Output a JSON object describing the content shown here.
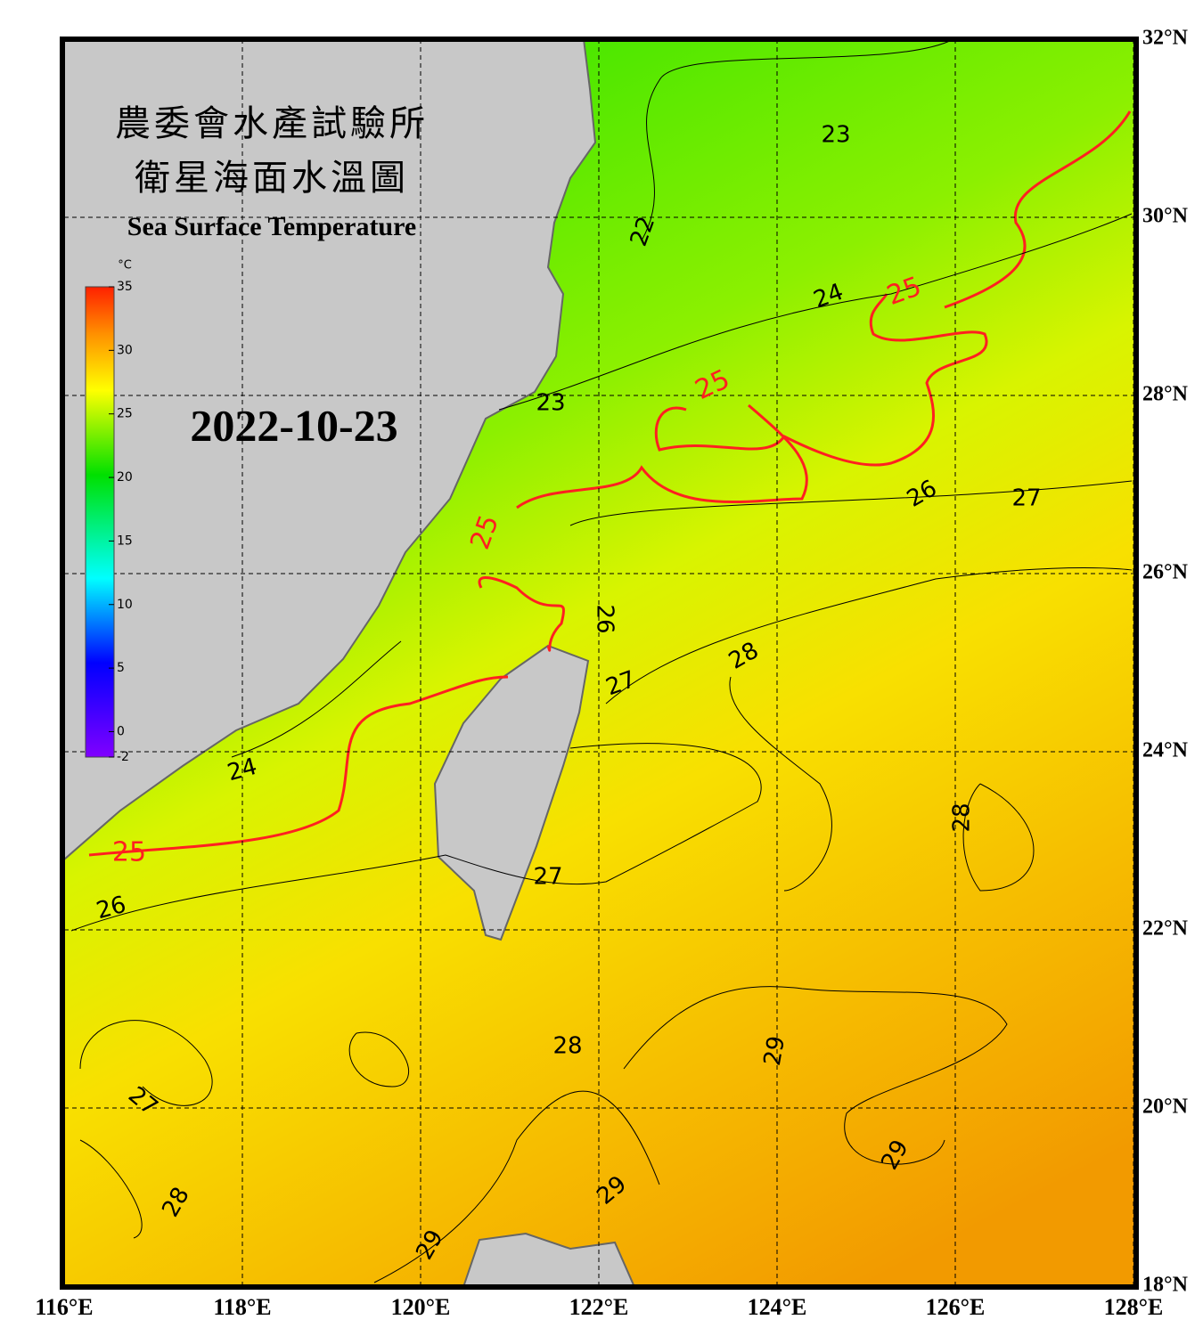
{
  "map": {
    "title_zh_1": "農委會水產試驗所",
    "title_zh_2": "衛星海面水溫圖",
    "title_en": "Sea Surface Temperature",
    "date": "2022-10-23",
    "colorbar": {
      "unit": "°C",
      "clim": [
        -2,
        35
      ],
      "ticks": [
        35,
        30,
        25,
        20,
        15,
        10,
        5,
        0,
        -2
      ]
    },
    "xlim": [
      116,
      128
    ],
    "xticks": [
      {
        "value": 116,
        "label": "116°E"
      },
      {
        "value": 118,
        "label": "118°E"
      },
      {
        "value": 120,
        "label": "120°E"
      },
      {
        "value": 122,
        "label": "122°E"
      },
      {
        "value": 124,
        "label": "124°E"
      },
      {
        "value": 126,
        "label": "126°E"
      },
      {
        "value": 128,
        "label": "128°E"
      }
    ],
    "ylim": [
      18,
      32
    ],
    "yticks": [
      {
        "value": 18,
        "label": "18°N"
      },
      {
        "value": 20,
        "label": "20°N"
      },
      {
        "value": 22,
        "label": "22°N"
      },
      {
        "value": 24,
        "label": "24°N"
      },
      {
        "value": 26,
        "label": "26°N"
      },
      {
        "value": 28,
        "label": "28°N"
      },
      {
        "value": 30,
        "label": "30°N"
      },
      {
        "value": 32,
        "label": "32°N"
      }
    ],
    "contour_labels": [
      22,
      23,
      24,
      25,
      25,
      23,
      26,
      27,
      25,
      26,
      28,
      27,
      24,
      28,
      25,
      27,
      26,
      28,
      29,
      27,
      29,
      29,
      28,
      29
    ],
    "highlight_contour": 25,
    "highlight_color": "#ff2020"
  }
}
